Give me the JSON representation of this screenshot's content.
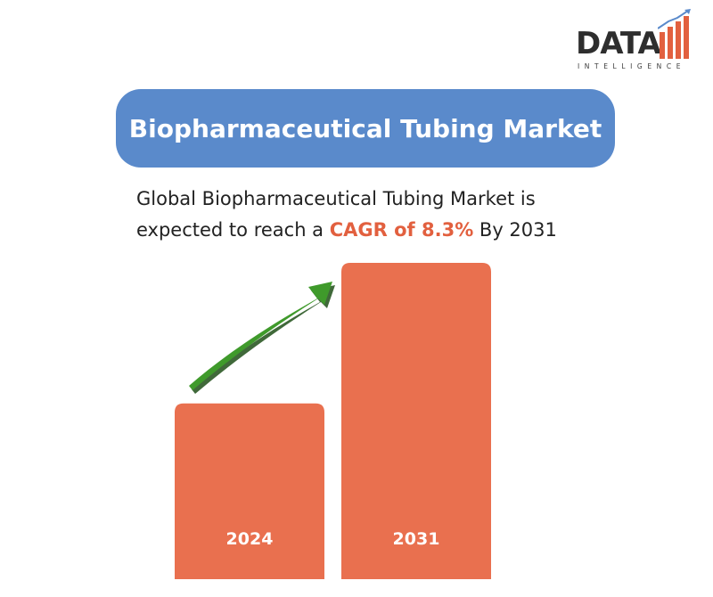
{
  "logo": {
    "word": "DATA",
    "sub": "INTELLIGENCE",
    "icon": "bar-chart-logo-icon"
  },
  "title": "Biopharmaceutical Tubing Market",
  "subtitle": {
    "line1": "Global Biopharmaceutical Tubing Market is",
    "line2_pre": "expected to reach a ",
    "highlight": "CAGR of 8.3%",
    "line2_post": " By 2031"
  },
  "colors": {
    "title_bg": "#5a8acb",
    "bar": "#e9704f",
    "accent_text": "#e2603f",
    "arrow": "#3f9a2b"
  },
  "chart_data": {
    "type": "bar",
    "categories": [
      "2024",
      "2031"
    ],
    "values": [
      1.0,
      1.8
    ],
    "ylim": [
      0,
      1.8
    ],
    "title": "",
    "xlabel": "",
    "ylabel": "",
    "grid": false,
    "annotation_icon": "growth-arrow-icon"
  }
}
